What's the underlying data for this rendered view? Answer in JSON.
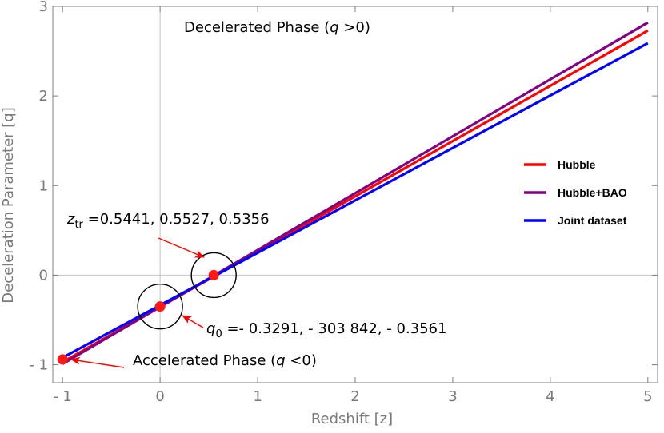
{
  "chart_data": {
    "type": "line",
    "xlabel": "Redshift [z]",
    "ylabel": "Deceleration Parameter [q]",
    "xlim": [
      -1.1,
      5.1
    ],
    "ylim": [
      -1.2,
      3.0
    ],
    "x_ticks": [
      -1,
      0,
      1,
      2,
      3,
      4,
      5
    ],
    "x_tick_labels": [
      "- 1",
      "0",
      "1",
      "2",
      "3",
      "4",
      "5"
    ],
    "y_ticks": [
      -1,
      0,
      1,
      2,
      3
    ],
    "y_tick_labels": [
      "- 1",
      "0",
      "1",
      "2",
      "3"
    ],
    "grid": false,
    "reference_lines": {
      "x": 0,
      "y": 0
    },
    "legend_position": "right",
    "series": [
      {
        "name": "Hubble",
        "color": "#ff0000",
        "x": [
          -1,
          5
        ],
        "y": [
          -0.97,
          2.73
        ]
      },
      {
        "name": "Hubble+BAO",
        "color": "#800080",
        "x": [
          -1,
          5
        ],
        "y": [
          -0.99,
          2.82
        ]
      },
      {
        "name": "Joint dataset",
        "color": "#0000ff",
        "x": [
          -1,
          5
        ],
        "y": [
          -0.92,
          2.59
        ]
      }
    ],
    "points": [
      {
        "x": -1,
        "y": -0.94
      },
      {
        "x": 0,
        "y": -0.35
      },
      {
        "x": 0.55,
        "y": 0.0
      }
    ],
    "circles": [
      {
        "x": 0,
        "y": -0.35
      },
      {
        "x": 0.55,
        "y": 0.0
      }
    ],
    "annotations": {
      "top": {
        "pre": "Decelerated Phase (",
        "var": "q",
        "post": " >0)"
      },
      "ztr": {
        "var": "z",
        "sub": "tr",
        "post": " =0.5441, 0.5527, 0.5356"
      },
      "q0": {
        "var": "q",
        "sub": "0",
        "post": " =- 0.3291, - 303 842, - 0.3561"
      },
      "bottom": {
        "pre": "Accelerated Phase (",
        "var": "q",
        "post": " <0)"
      }
    }
  }
}
